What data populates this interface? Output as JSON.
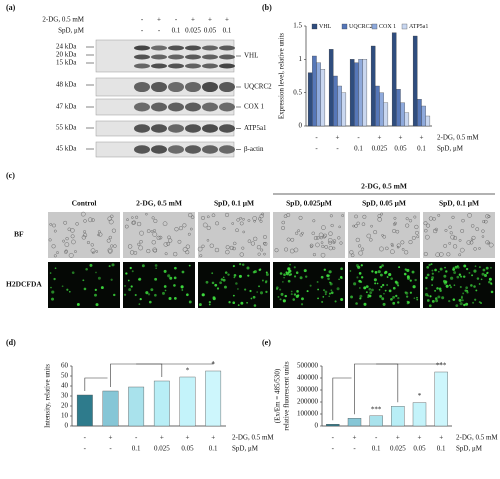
{
  "panel_labels": [
    "(a)",
    "(b)",
    "(c)",
    "(d)",
    "(e)"
  ],
  "blot": {
    "conditions": [
      {
        "label": "2-DG, 0.5 mM",
        "values": [
          "-",
          "+",
          "-",
          "+",
          "+",
          "+"
        ]
      },
      {
        "label": "SpD, μM",
        "values": [
          "-",
          "-",
          "0.1",
          "0.025",
          "0.05",
          "0.1"
        ]
      }
    ],
    "markers": [
      "24 kDa",
      "20 kDa",
      "15 kDa",
      "48 kDa",
      "47 kDa",
      "55 kDa",
      "45 kDa"
    ],
    "proteins": [
      "VHL",
      "UQCRC2",
      "COX 1",
      "ATP5a1",
      "β-actin"
    ]
  },
  "images": {
    "group_header": "2-DG, 0.5 mM",
    "columns": [
      "Control",
      "2-DG, 0.5 mM",
      "SpD, 0.1 μM",
      "SpD, 0.025μM",
      "SpD, 0.05 μM",
      "SpD, 0.1 μM"
    ],
    "rows": [
      "BF",
      "H2DCFDA"
    ]
  },
  "chart_data": [
    {
      "type": "bar",
      "ylabel": "Expression level, relative units",
      "ylim": [
        0,
        1.5
      ],
      "yticks": [
        0,
        0.5,
        1,
        1.5
      ],
      "series": [
        {
          "name": "VHL",
          "color": "#2f4d7e",
          "values": [
            0.8,
            1.15,
            1.0,
            1.2,
            1.4,
            1.35
          ]
        },
        {
          "name": "UQCRC2",
          "color": "#5677b8",
          "values": [
            1.05,
            0.75,
            0.95,
            0.6,
            0.55,
            0.4
          ]
        },
        {
          "name": "COX 1",
          "color": "#8faadc",
          "values": [
            0.95,
            0.6,
            1.0,
            0.5,
            0.35,
            0.3
          ]
        },
        {
          "name": "ATP5a1",
          "color": "#c9d7f0",
          "values": [
            0.85,
            0.5,
            1.0,
            0.35,
            0.2,
            0.15
          ]
        }
      ],
      "conditions": [
        {
          "label": "2-DG, 0.5 mM",
          "values": [
            "-",
            "+",
            "-",
            "+",
            "+",
            "+"
          ]
        },
        {
          "label": "SpD, μM",
          "values": [
            "-",
            "-",
            "0.1",
            "0.025",
            "0.05",
            "0.1"
          ]
        }
      ]
    },
    {
      "type": "bar",
      "ylabel": "Intensity, relative units",
      "ylim": [
        0,
        60
      ],
      "yticks": [
        0,
        10,
        20,
        30,
        40,
        50,
        60
      ],
      "values": [
        31,
        35,
        39,
        45,
        49,
        55
      ],
      "colors": [
        "#2e7b8c",
        "#86c6d6",
        "#a9e2ec",
        "#b8eef6",
        "#c4f3fa",
        "#cdf6fc"
      ],
      "significance": [
        null,
        null,
        null,
        null,
        "*",
        "*"
      ],
      "conditions": [
        {
          "label": "2-DG, 0.5 mM",
          "values": [
            "-",
            "+",
            "-",
            "+",
            "+",
            "+"
          ]
        },
        {
          "label": "SpD, μM",
          "values": [
            "-",
            "-",
            "0.1",
            "0.025",
            "0.05",
            "0.1"
          ]
        }
      ]
    },
    {
      "type": "bar",
      "ylabel": [
        "(Ex/Em = 485/530)",
        "relative fluorescent units"
      ],
      "ylim": [
        0,
        500000
      ],
      "yticks": [
        0,
        100000,
        200000,
        300000,
        400000,
        500000
      ],
      "values": [
        15000,
        65000,
        85000,
        165000,
        195000,
        450000
      ],
      "colors": [
        "#2e7b8c",
        "#86c6d6",
        "#a9e2ec",
        "#b8eef6",
        "#c4f3fa",
        "#cdf6fc"
      ],
      "significance": [
        null,
        null,
        "***",
        null,
        "*",
        "***"
      ],
      "conditions": [
        {
          "label": "2-DG, 0.5 mM",
          "values": [
            "-",
            "+",
            "-",
            "+",
            "+",
            "+"
          ]
        },
        {
          "label": "SpD, μM",
          "values": [
            "-",
            "-",
            "0.1",
            "0.025",
            "0.05",
            "0.1"
          ]
        }
      ]
    }
  ]
}
